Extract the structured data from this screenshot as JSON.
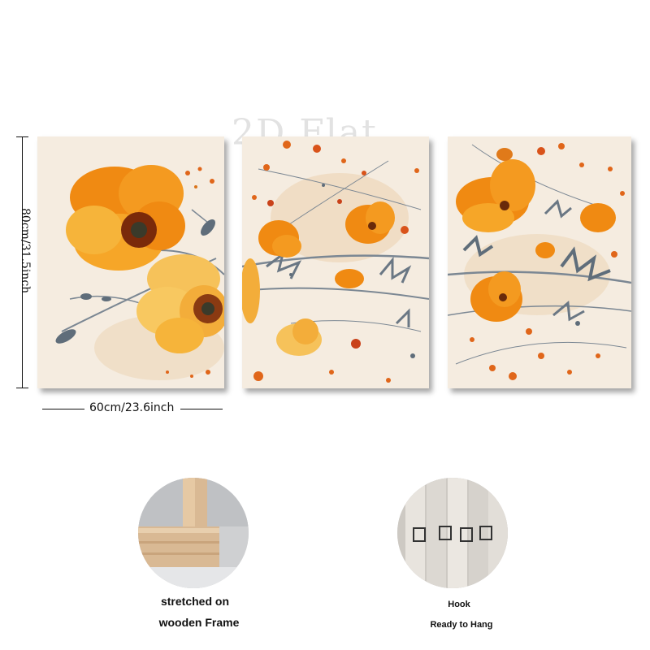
{
  "watermark": "2D Flat",
  "dimensions": {
    "height_label": "80cm/31.5inch",
    "width_label": "60cm/23.6inch"
  },
  "panels": [
    {
      "name": "left-panel"
    },
    {
      "name": "middle-panel"
    },
    {
      "name": "right-panel"
    }
  ],
  "features": {
    "frame_caption_line1": "stretched on",
    "frame_caption_line2": "wooden Frame",
    "hook_caption_line1": "Hook",
    "hook_caption_line2": "Ready to Hang"
  },
  "colors": {
    "canvas_bg": "#f5ece0",
    "petal_orange": "#f08a12",
    "petal_light": "#f6b43a",
    "stem_gray": "#7b8793",
    "wood": "#d9b994"
  }
}
